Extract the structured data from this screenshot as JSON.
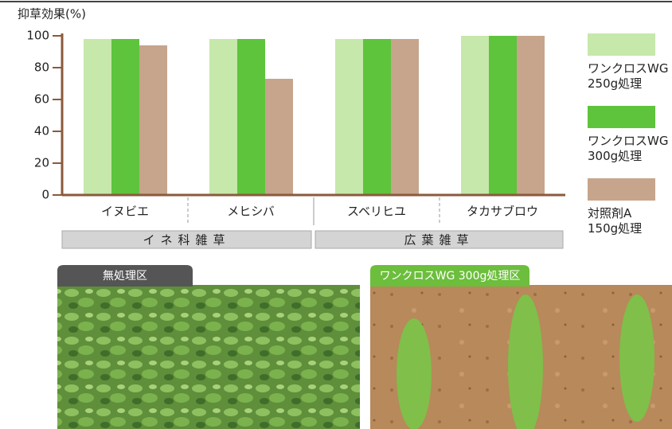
{
  "chart_data": {
    "type": "bar",
    "y_label": "抑草効果(%)",
    "categories": [
      "イヌビエ",
      "メヒシバ",
      "スベリヒユ",
      "タカサブロウ"
    ],
    "groups": [
      {
        "label": "イネ科雑草",
        "span": [
          0,
          1
        ]
      },
      {
        "label": "広葉雑草",
        "span": [
          2,
          3
        ]
      }
    ],
    "series": [
      {
        "name": "ワンクロスWG\n250g処理",
        "color": "#c6e8aa",
        "values": [
          98,
          98,
          98,
          100
        ]
      },
      {
        "name": "ワンクロスWG\n300g処理",
        "color": "#5ec43c",
        "values": [
          98,
          98,
          98,
          100
        ]
      },
      {
        "name": "対照剤A\n150g処理",
        "color": "#c6a58c",
        "values": [
          94,
          73,
          98,
          100
        ]
      }
    ],
    "ylim": [
      0,
      100
    ],
    "yticks": [
      0,
      20,
      40,
      60,
      80,
      100
    ]
  },
  "photos": [
    {
      "label": "無処理区"
    },
    {
      "label": "ワンクロスWG 300g処理区"
    }
  ]
}
